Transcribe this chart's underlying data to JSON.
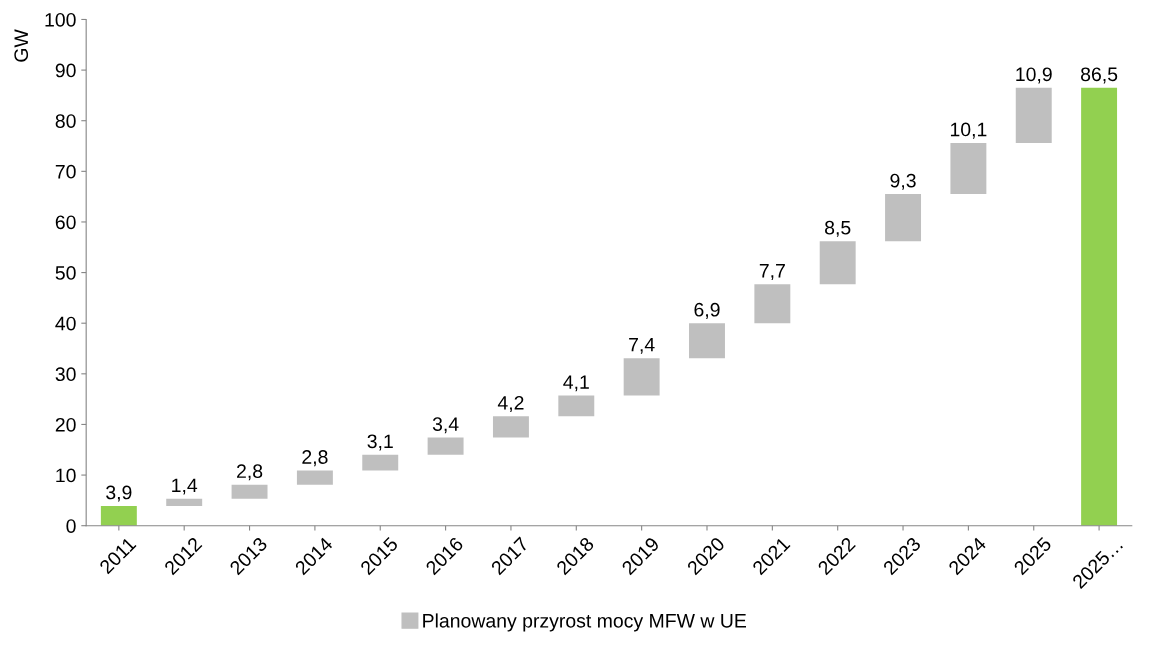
{
  "chart_data": {
    "type": "bar",
    "ylabel": "GW",
    "categories": [
      "2011",
      "2012",
      "2013",
      "2014",
      "2015",
      "2016",
      "2017",
      "2018",
      "2019",
      "2020",
      "2021",
      "2022",
      "2023",
      "2024",
      "2025",
      "2025…"
    ],
    "series": [
      {
        "name": "Planowany przyrost mocy MFW w UE",
        "color": "#bfbfbf",
        "colors": [
          "#92d050",
          "#bfbfbf",
          "#bfbfbf",
          "#bfbfbf",
          "#bfbfbf",
          "#bfbfbf",
          "#bfbfbf",
          "#bfbfbf",
          "#bfbfbf",
          "#bfbfbf",
          "#bfbfbf",
          "#bfbfbf",
          "#bfbfbf",
          "#bfbfbf",
          "#bfbfbf",
          "#92d050"
        ],
        "values": [
          3.9,
          1.4,
          2.8,
          2.8,
          3.1,
          3.4,
          4.2,
          4.1,
          7.4,
          6.9,
          7.7,
          8.5,
          9.3,
          10.1,
          10.9,
          86.5
        ],
        "base": [
          0,
          3.9,
          5.3,
          8.1,
          10.9,
          14.0,
          17.4,
          21.6,
          25.7,
          33.1,
          40.0,
          47.7,
          56.2,
          65.5,
          75.6,
          0
        ],
        "value_labels": [
          "3,9",
          "1,4",
          "2,8",
          "2,8",
          "3,1",
          "3,4",
          "4,2",
          "4,1",
          "7,4",
          "6,9",
          "7,7",
          "8,5",
          "9,3",
          "10,1",
          "10,9",
          "86,5"
        ]
      }
    ],
    "ylim": [
      0,
      100
    ],
    "yticks": [
      0,
      10,
      20,
      30,
      40,
      50,
      60,
      70,
      80,
      90,
      100
    ],
    "grid": false,
    "legend": "bottom"
  }
}
